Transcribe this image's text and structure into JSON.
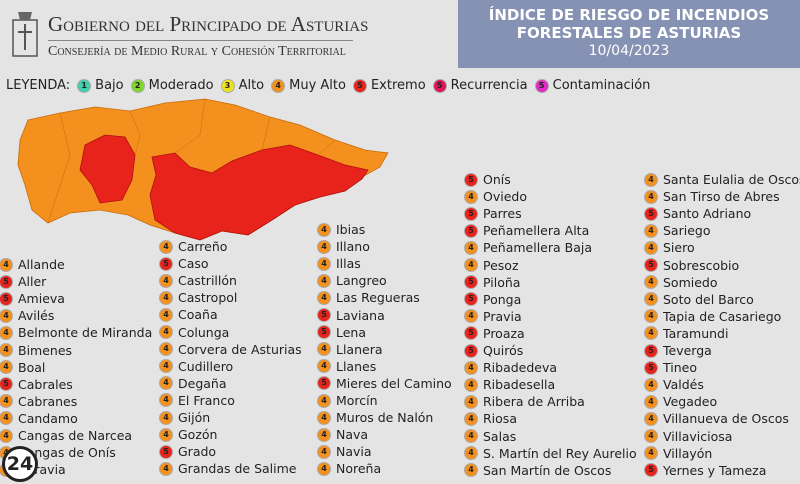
{
  "header": {
    "title": "Gobierno del Principado de Asturias",
    "subtitle": "Consejería de Medio Rural y Cohesión Territorial"
  },
  "banner": {
    "title_lines": [
      "ÍNDICE DE RIESGO DE INCENDIOS",
      "FORESTALES DE ASTURIAS"
    ],
    "date": "10/04/2023"
  },
  "legend": {
    "title": "LEYENDA:",
    "items": [
      {
        "level": 1,
        "label": "Bajo",
        "color": "#3fcfae"
      },
      {
        "level": 2,
        "label": "Moderado",
        "color": "#7fd82a"
      },
      {
        "level": 3,
        "label": "Alto",
        "color": "#eee21f"
      },
      {
        "level": 4,
        "label": "Muy Alto",
        "color": "#f4901d"
      },
      {
        "level": 5,
        "label": "Extremo",
        "color": "#e8231b"
      },
      {
        "level": 5,
        "label": "Recurrencia",
        "color": "#e2145c"
      },
      {
        "level": 5,
        "label": "Contaminación",
        "color": "#e02cc4"
      }
    ]
  },
  "municipalities": {
    "columns": [
      [
        {
          "name": "Allande",
          "level": 4
        },
        {
          "name": "Aller",
          "level": 5
        },
        {
          "name": "Amieva",
          "level": 5
        },
        {
          "name": "Avilés",
          "level": 4
        },
        {
          "name": "Belmonte de Miranda",
          "level": 4
        },
        {
          "name": "Bimenes",
          "level": 4
        },
        {
          "name": "Boal",
          "level": 4
        },
        {
          "name": "Cabrales",
          "level": 5
        },
        {
          "name": "Cabranes",
          "level": 4
        },
        {
          "name": "Candamo",
          "level": 4
        },
        {
          "name": "Cangas de Narcea",
          "level": 4
        },
        {
          "name": "Cangas de Onís",
          "level": 4
        },
        {
          "name": "Caravia",
          "level": 4
        }
      ],
      [
        {
          "name": "Carreño",
          "level": 4
        },
        {
          "name": "Caso",
          "level": 5
        },
        {
          "name": "Castrillón",
          "level": 4
        },
        {
          "name": "Castropol",
          "level": 4
        },
        {
          "name": "Coaña",
          "level": 4
        },
        {
          "name": "Colunga",
          "level": 4
        },
        {
          "name": "Corvera de Asturias",
          "level": 4
        },
        {
          "name": "Cudillero",
          "level": 4
        },
        {
          "name": "Degaña",
          "level": 4
        },
        {
          "name": "El Franco",
          "level": 4
        },
        {
          "name": "Gijón",
          "level": 4
        },
        {
          "name": "Gozón",
          "level": 4
        },
        {
          "name": "Grado",
          "level": 5
        },
        {
          "name": "Grandas de Salime",
          "level": 4
        }
      ],
      [
        {
          "name": "Ibias",
          "level": 4
        },
        {
          "name": "Illano",
          "level": 4
        },
        {
          "name": "Illas",
          "level": 4
        },
        {
          "name": "Langreo",
          "level": 4
        },
        {
          "name": "Las Regueras",
          "level": 4
        },
        {
          "name": "Laviana",
          "level": 5
        },
        {
          "name": "Lena",
          "level": 5
        },
        {
          "name": "Llanera",
          "level": 4
        },
        {
          "name": "Llanes",
          "level": 4
        },
        {
          "name": "Mieres del Camino",
          "level": 5
        },
        {
          "name": "Morcín",
          "level": 4
        },
        {
          "name": "Muros de Nalón",
          "level": 4
        },
        {
          "name": "Nava",
          "level": 4
        },
        {
          "name": "Navia",
          "level": 4
        },
        {
          "name": "Noreña",
          "level": 4
        }
      ],
      [
        {
          "name": "Onís",
          "level": 5
        },
        {
          "name": "Oviedo",
          "level": 4
        },
        {
          "name": "Parres",
          "level": 5
        },
        {
          "name": "Peñamellera Alta",
          "level": 5
        },
        {
          "name": "Peñamellera Baja",
          "level": 4
        },
        {
          "name": "Pesoz",
          "level": 4
        },
        {
          "name": "Piloña",
          "level": 5
        },
        {
          "name": "Ponga",
          "level": 5
        },
        {
          "name": "Pravia",
          "level": 4
        },
        {
          "name": "Proaza",
          "level": 5
        },
        {
          "name": "Quirós",
          "level": 5
        },
        {
          "name": "Ribadedeva",
          "level": 4
        },
        {
          "name": "Ribadesella",
          "level": 4
        },
        {
          "name": "Ribera de Arriba",
          "level": 4
        },
        {
          "name": "Riosa",
          "level": 4
        },
        {
          "name": "Salas",
          "level": 4
        },
        {
          "name": "S. Martín del Rey Aurelio",
          "level": 4
        },
        {
          "name": "San Martín de Oscos",
          "level": 4
        }
      ],
      [
        {
          "name": "Santa Eulalia de Oscos",
          "level": 4
        },
        {
          "name": "San Tirso de Abres",
          "level": 4
        },
        {
          "name": "Santo Adriano",
          "level": 5
        },
        {
          "name": "Sariego",
          "level": 4
        },
        {
          "name": "Siero",
          "level": 4
        },
        {
          "name": "Sobrescobio",
          "level": 5
        },
        {
          "name": "Somiedo",
          "level": 4
        },
        {
          "name": "Soto del Barco",
          "level": 4
        },
        {
          "name": "Tapia de Casariego",
          "level": 4
        },
        {
          "name": "Taramundi",
          "level": 4
        },
        {
          "name": "Teverga",
          "level": 5
        },
        {
          "name": "Tineo",
          "level": 5
        },
        {
          "name": "Valdés",
          "level": 4
        },
        {
          "name": "Vegadeo",
          "level": 4
        },
        {
          "name": "Villanueva de Oscos",
          "level": 4
        },
        {
          "name": "Villaviciosa",
          "level": 4
        },
        {
          "name": "Villayón",
          "level": 4
        },
        {
          "name": "Yernes y Tameza",
          "level": 5
        }
      ]
    ]
  },
  "watermark": "24"
}
